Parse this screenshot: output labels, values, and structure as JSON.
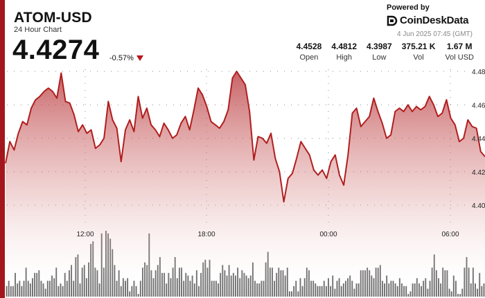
{
  "header": {
    "pair": "ATOM-USD",
    "subtitle": "24 Hour Chart",
    "price": "4.4274",
    "change": "-0.57%",
    "powered_by": "Powered by",
    "brand": "CoinDeskData",
    "timestamp": "4 Jun 2025 07:45 (GMT)"
  },
  "stats": [
    {
      "value": "4.4528",
      "label": "Open"
    },
    {
      "value": "4.4812",
      "label": "High"
    },
    {
      "value": "4.3987",
      "label": "Low"
    },
    {
      "value": "375.21 K",
      "label": "Vol"
    },
    {
      "value": "1.67 M",
      "label": "Vol USD"
    }
  ],
  "colors": {
    "accent": "#a3161b",
    "line": "#b01e1e",
    "volume": "#6b6b6b"
  },
  "chart_data": {
    "type": "area",
    "x_ticks": [
      "12:00",
      "18:00",
      "00:00",
      "06:00"
    ],
    "y_ticks": [
      "4.48",
      "4.46",
      "4.44",
      "4.42",
      "4.40"
    ],
    "ylim": [
      4.388,
      4.482
    ],
    "price": [
      4.425,
      4.438,
      4.433,
      4.443,
      4.45,
      4.448,
      4.458,
      4.463,
      4.465,
      4.468,
      4.47,
      4.468,
      4.464,
      4.479,
      4.462,
      4.461,
      4.454,
      4.444,
      4.448,
      4.443,
      4.445,
      4.434,
      4.436,
      4.44,
      4.462,
      4.451,
      4.446,
      4.426,
      4.445,
      4.451,
      4.444,
      4.465,
      4.452,
      4.458,
      4.448,
      4.445,
      4.441,
      4.449,
      4.445,
      4.44,
      4.442,
      4.449,
      4.453,
      4.445,
      4.457,
      4.47,
      4.466,
      4.459,
      4.45,
      4.448,
      4.446,
      4.45,
      4.457,
      4.476,
      4.48,
      4.476,
      4.472,
      4.456,
      4.427,
      4.441,
      4.44,
      4.437,
      4.443,
      4.428,
      4.42,
      4.402,
      4.416,
      4.419,
      4.428,
      4.438,
      4.434,
      4.43,
      4.421,
      4.418,
      4.421,
      4.416,
      4.426,
      4.43,
      4.418,
      4.412,
      4.43,
      4.455,
      4.458,
      4.447,
      4.45,
      4.453,
      4.464,
      4.456,
      4.449,
      4.44,
      4.442,
      4.456,
      4.458,
      4.456,
      4.46,
      4.456,
      4.459,
      4.457,
      4.459,
      4.465,
      4.46,
      4.453,
      4.455,
      4.463,
      4.452,
      4.448,
      4.438,
      4.44,
      4.451,
      4.447,
      4.446,
      4.432,
      4.429
    ],
    "volume": [
      4,
      6,
      4,
      4,
      9,
      5,
      6,
      4,
      6,
      11,
      6,
      5,
      7,
      9,
      9,
      10,
      6,
      5,
      3,
      6,
      6,
      8,
      7,
      11,
      4,
      5,
      4,
      9,
      6,
      10,
      12,
      6,
      15,
      16,
      5,
      11,
      12,
      7,
      13,
      20,
      21,
      11,
      10,
      5,
      24,
      11,
      25,
      24,
      22,
      18,
      12,
      6,
      10,
      4,
      7,
      6,
      7,
      2,
      4,
      6,
      4,
      1,
      6,
      11,
      13,
      12,
      24,
      10,
      7,
      10,
      12,
      15,
      9,
      9,
      5,
      9,
      7,
      11,
      15,
      7,
      11,
      11,
      6,
      9,
      8,
      6,
      8,
      5,
      10,
      4,
      9,
      13,
      14,
      11,
      14,
      6,
      6,
      6,
      5,
      9,
      12,
      10,
      8,
      12,
      8,
      9,
      8,
      11,
      7,
      10,
      9,
      8,
      7,
      8,
      13,
      6,
      5,
      5,
      6,
      6,
      13,
      17,
      11,
      11,
      6,
      9,
      11,
      10,
      10,
      8,
      11,
      2,
      2,
      4,
      6,
      2,
      7,
      4,
      7,
      11,
      10,
      6,
      6,
      5,
      4,
      4,
      4,
      6,
      4,
      7,
      4,
      8,
      3,
      6,
      7,
      4,
      5,
      6,
      7,
      8,
      6,
      3,
      5,
      5,
      10,
      10,
      10,
      11,
      10,
      8,
      7,
      11,
      11,
      12,
      6,
      5,
      8,
      5,
      6,
      6,
      5,
      4,
      7,
      5,
      4,
      4,
      1,
      2,
      5,
      5,
      7,
      5,
      4,
      6,
      7,
      3,
      6,
      11,
      16,
      10,
      7,
      5,
      11,
      10,
      10,
      3,
      2,
      8,
      6,
      1,
      1,
      3,
      11,
      15,
      11,
      5,
      11,
      5,
      3,
      9,
      4,
      5
    ],
    "volume_max": 25
  }
}
